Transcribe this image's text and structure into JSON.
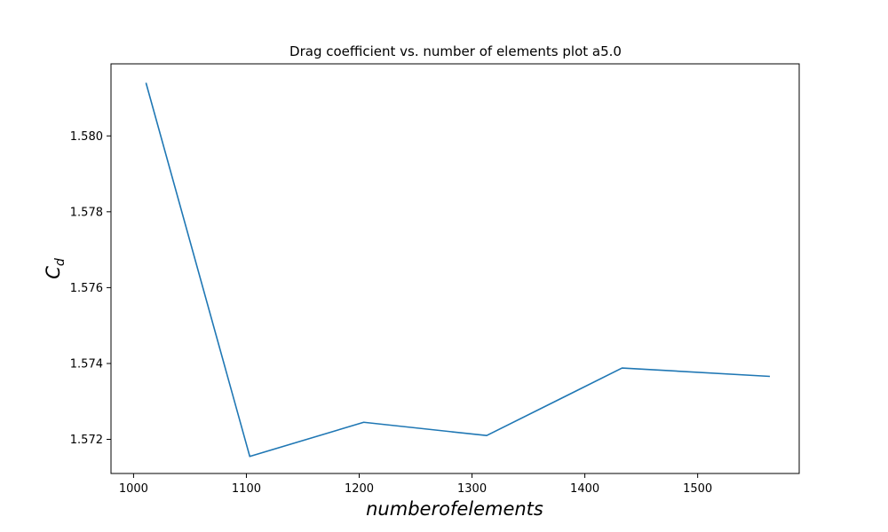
{
  "chart_data": {
    "type": "line",
    "title": "Drag coefficient vs. number of elements plot a5.0",
    "xlabel": "numberofelements",
    "ylabel": "C",
    "ylabel_subscript": "d",
    "xlim": [
      980,
      1590
    ],
    "ylim": [
      1.5711,
      1.5819
    ],
    "x_ticks": [
      1000,
      1100,
      1200,
      1300,
      1400,
      1500
    ],
    "x_tick_labels": [
      "1000",
      "1100",
      "1200",
      "1300",
      "1400",
      "1500"
    ],
    "y_ticks": [
      1.572,
      1.574,
      1.576,
      1.578,
      1.58
    ],
    "y_tick_labels": [
      "1.572",
      "1.574",
      "1.576",
      "1.578",
      "1.580"
    ],
    "grid": false,
    "series": [
      {
        "x": [
          1011,
          1103,
          1204,
          1313,
          1433,
          1564
        ],
        "values": [
          1.5814,
          1.57155,
          1.57245,
          1.5721,
          1.57388,
          1.57366
        ],
        "color": "#1f77b4"
      }
    ]
  }
}
